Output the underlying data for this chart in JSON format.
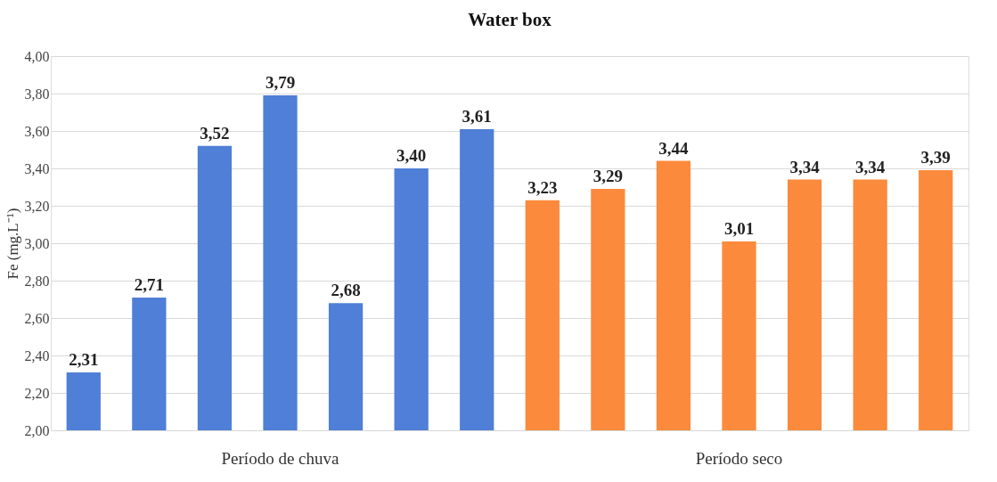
{
  "chart_data": {
    "type": "bar",
    "title": "Water box",
    "ylabel": "Fe (mg.L⁻¹)",
    "categories": [
      null,
      null,
      null,
      null,
      null,
      null,
      null,
      null,
      null,
      null,
      null,
      null,
      null,
      null
    ],
    "series": [
      {
        "name": "Período de chuva",
        "color": "#4f7fd6",
        "values": [
          2.31,
          2.71,
          3.52,
          3.79,
          2.68,
          3.4,
          3.61,
          null,
          null,
          null,
          null,
          null,
          null,
          null
        ],
        "value_labels": [
          "2,31",
          "2,71",
          "3,52",
          "3,79",
          "2,68",
          "3,40",
          "3,61",
          null,
          null,
          null,
          null,
          null,
          null,
          null
        ]
      },
      {
        "name": "Período seco",
        "color": "#fb8a3c",
        "values": [
          null,
          null,
          null,
          null,
          null,
          null,
          null,
          3.23,
          3.29,
          3.44,
          3.01,
          3.34,
          3.34,
          3.39
        ],
        "value_labels": [
          null,
          null,
          null,
          null,
          null,
          null,
          null,
          "3,23",
          "3,29",
          "3,44",
          "3,01",
          "3,34",
          "3,34",
          "3,39"
        ]
      }
    ],
    "ylim": [
      2,
      4
    ],
    "yticks": [
      {
        "value": 2,
        "label": "2,00"
      },
      {
        "value": 2.2,
        "label": "2,20"
      },
      {
        "value": 2.4,
        "label": "2,40"
      },
      {
        "value": 2.6,
        "label": "2,60"
      },
      {
        "value": 2.8,
        "label": "2,80"
      },
      {
        "value": 3,
        "label": "3,00"
      },
      {
        "value": 3.2,
        "label": "3,20"
      },
      {
        "value": 3.4,
        "label": "3,40"
      },
      {
        "value": 3.6,
        "label": "3,60"
      },
      {
        "value": 3.8,
        "label": "3,80"
      },
      {
        "value": 4,
        "label": "4,00"
      }
    ],
    "grid": "y",
    "tick_labels": "y"
  }
}
